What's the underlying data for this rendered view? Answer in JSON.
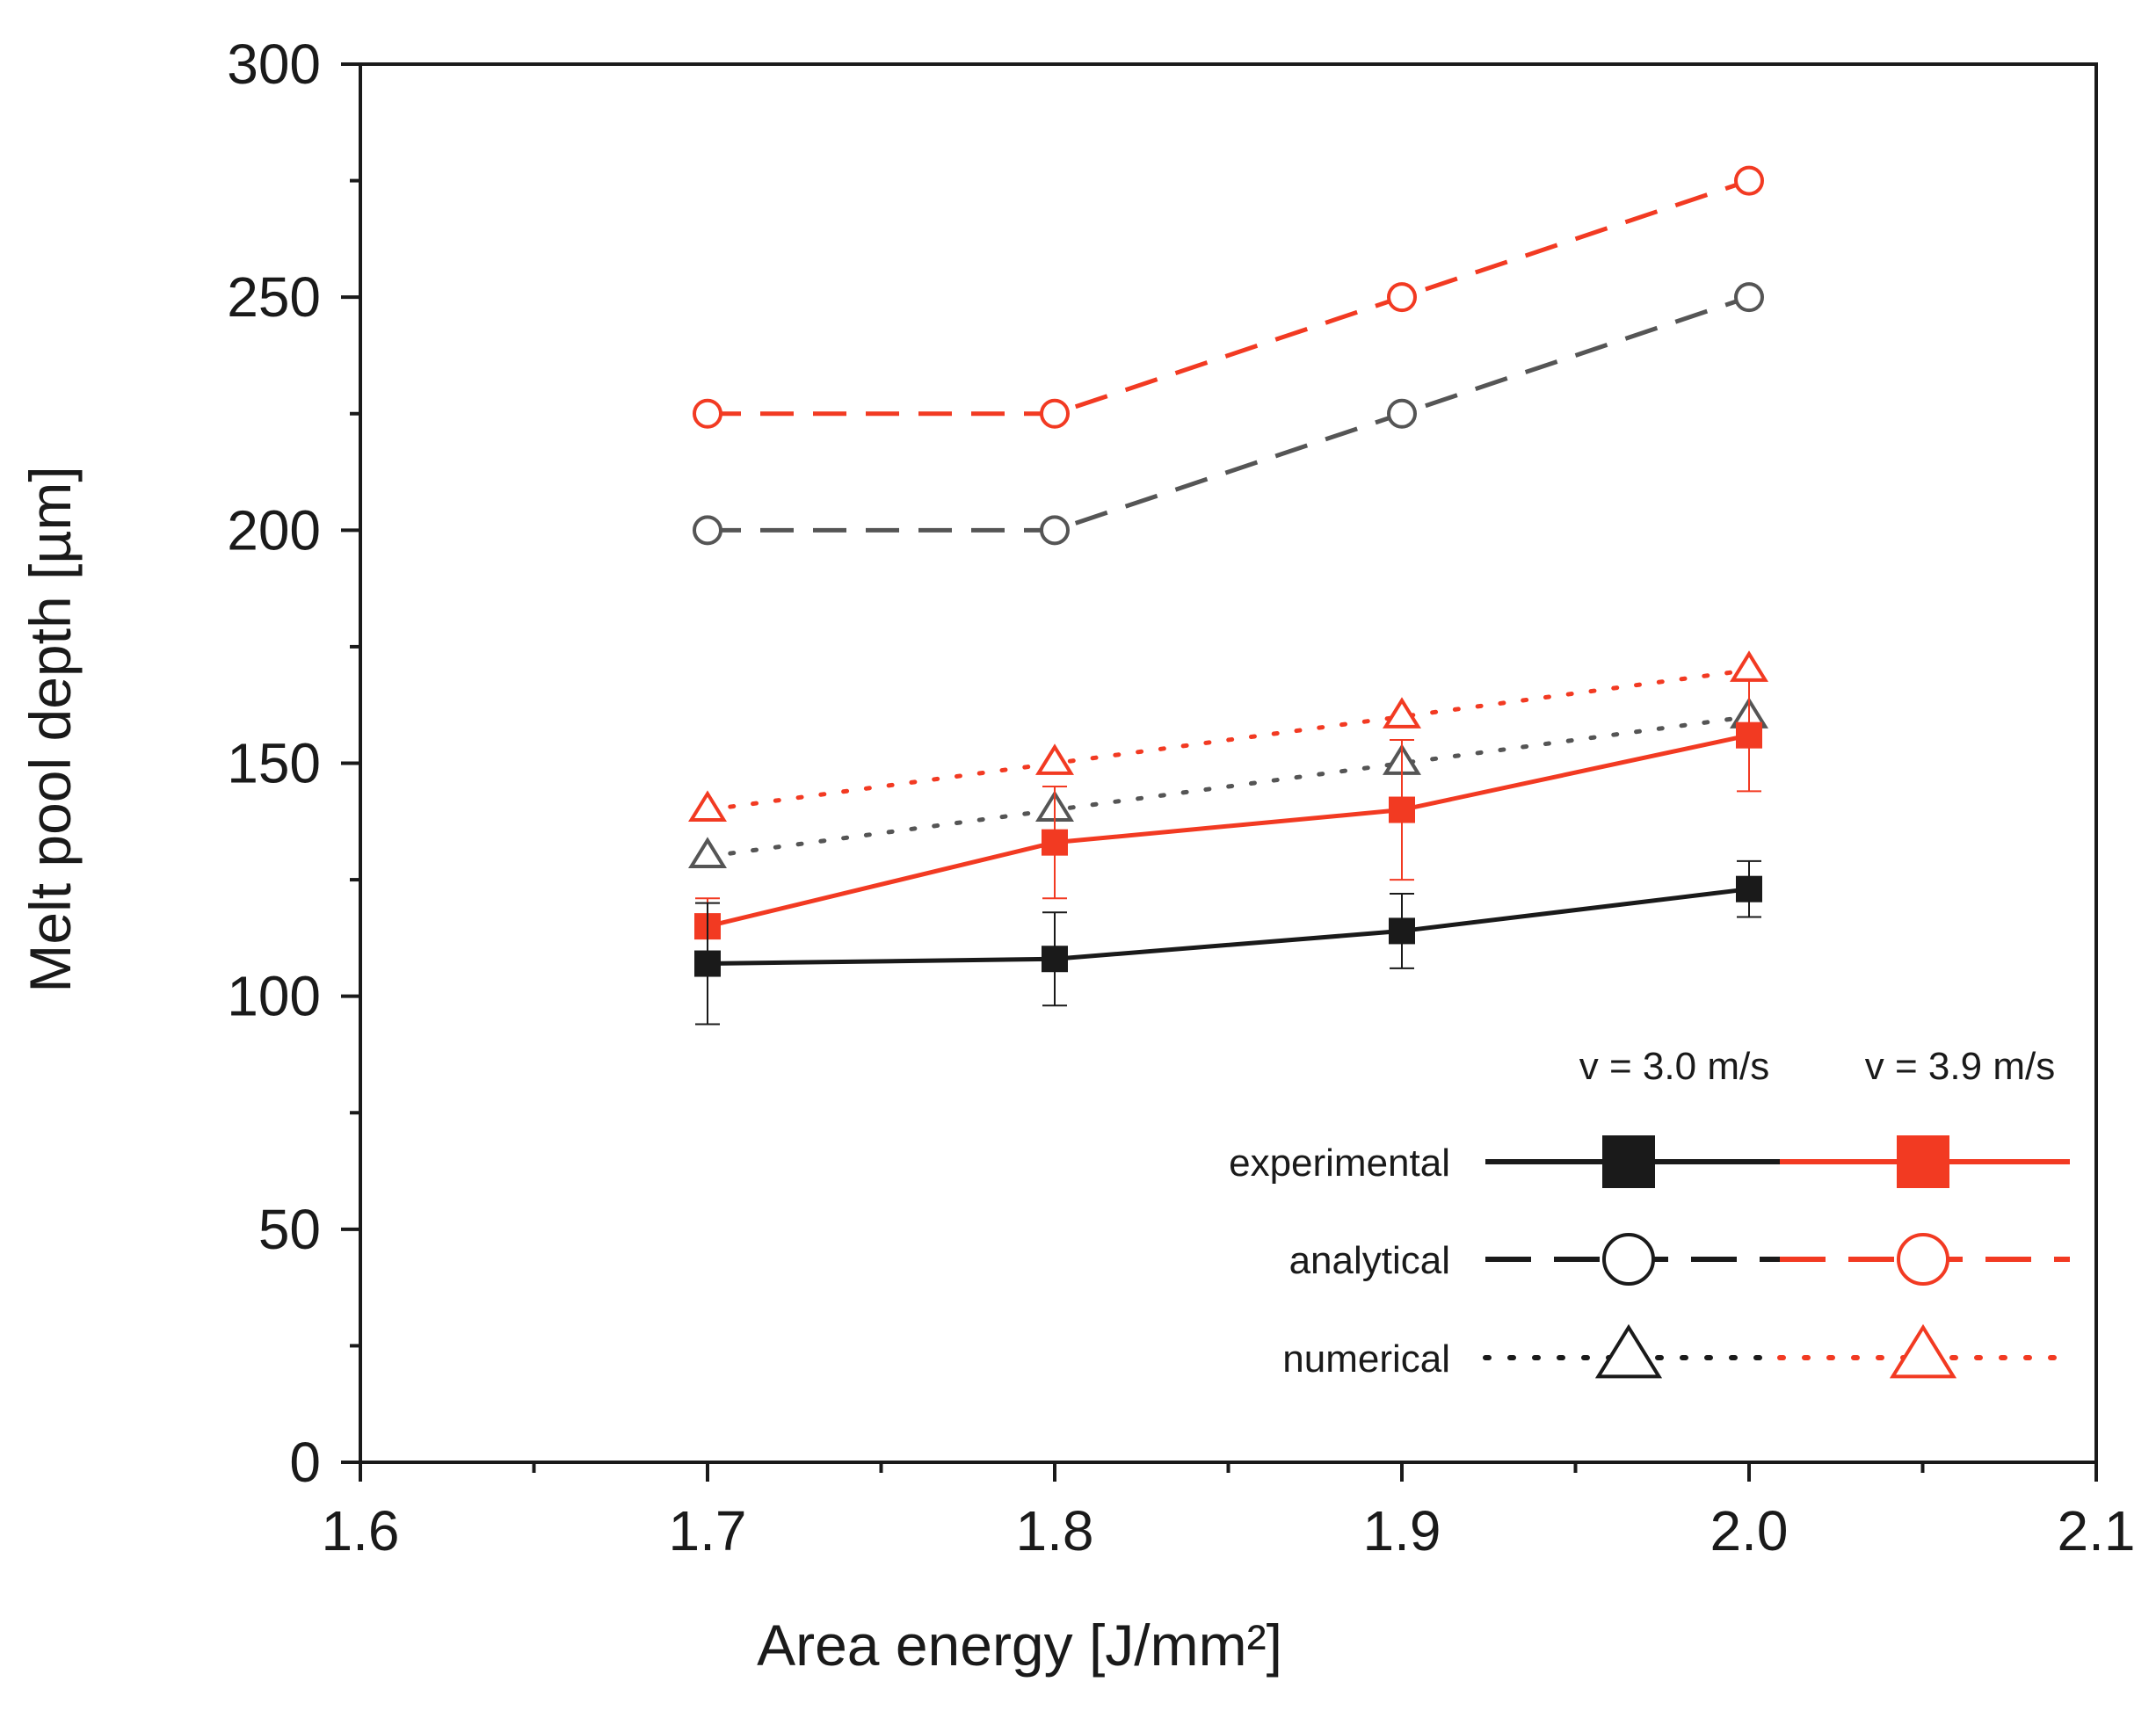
{
  "chart_data": {
    "type": "line",
    "title": "",
    "xlabel": "Area energy [J/mm²]",
    "ylabel": "Melt pool depth [µm]",
    "xlim": [
      1.6,
      2.1
    ],
    "ylim": [
      0,
      300
    ],
    "x_ticks": [
      "1.6",
      "1.7",
      "1.8",
      "1.9",
      "2.0",
      "2.1"
    ],
    "y_ticks": [
      "0",
      "50",
      "100",
      "150",
      "200",
      "250",
      "300"
    ],
    "grid": false,
    "legend_placement": "bottom-right",
    "legend": {
      "column_headers": [
        "v = 3.0 m/s",
        "v = 3.9 m/s"
      ],
      "row_labels": [
        "experimental",
        "analytical",
        "numerical"
      ]
    },
    "colors": {
      "v30": "#1a1a1a",
      "v30_sim": "#555555",
      "v39": "#f23a22"
    },
    "x": [
      1.7,
      1.8,
      1.9,
      2.0
    ],
    "series": [
      {
        "method": "analytical",
        "speed": "v = 3.9 m/s",
        "values": [
          225,
          225,
          250,
          275
        ],
        "color": "#f23a22",
        "marker": "circle-open",
        "line": "dashed"
      },
      {
        "method": "analytical",
        "speed": "v = 3.0 m/s",
        "values": [
          200,
          200,
          225,
          250
        ],
        "color": "#555555",
        "marker": "circle-open",
        "line": "dashed"
      },
      {
        "method": "numerical",
        "speed": "v = 3.9 m/s",
        "values": [
          140,
          150,
          160,
          170
        ],
        "color": "#f23a22",
        "marker": "triangle-open",
        "line": "dotted"
      },
      {
        "method": "numerical",
        "speed": "v = 3.0 m/s",
        "values": [
          130,
          140,
          150,
          160
        ],
        "color": "#555555",
        "marker": "triangle-open",
        "line": "dotted"
      },
      {
        "method": "experimental",
        "speed": "v = 3.9 m/s",
        "values": [
          115,
          133,
          140,
          156
        ],
        "errors": [
          6,
          12,
          15,
          12
        ],
        "color": "#f23a22",
        "marker": "square-filled",
        "line": "solid"
      },
      {
        "method": "experimental",
        "speed": "v = 3.0 m/s",
        "values": [
          107,
          108,
          114,
          123
        ],
        "errors": [
          13,
          10,
          8,
          6
        ],
        "color": "#1a1a1a",
        "marker": "square-filled",
        "line": "solid"
      }
    ]
  }
}
